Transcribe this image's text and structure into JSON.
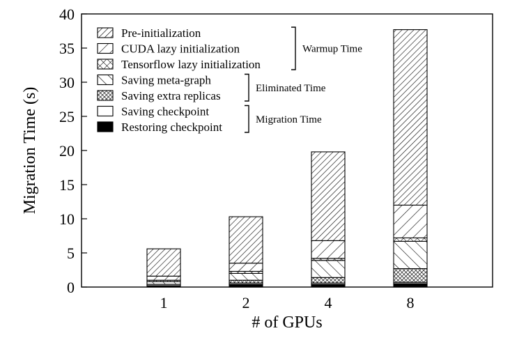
{
  "chart_data": {
    "type": "bar",
    "stacked": true,
    "title": "",
    "xlabel": "# of GPUs",
    "ylabel": "Migration Time (s)",
    "categories": [
      "1",
      "2",
      "4",
      "8"
    ],
    "ylim": [
      0,
      40
    ],
    "yticks": [
      0,
      5,
      10,
      15,
      20,
      25,
      30,
      35,
      40
    ],
    "grid": false,
    "legend_position": "top-left",
    "series": [
      {
        "name": "Restoring checkpoint",
        "values": [
          0.2,
          0.4,
          0.4,
          0.5
        ],
        "pattern": "solid"
      },
      {
        "name": "Saving checkpoint",
        "values": [
          0.2,
          0.2,
          0.2,
          0.2
        ],
        "pattern": "empty"
      },
      {
        "name": "Saving extra replicas",
        "values": [
          0.0,
          0.4,
          0.8,
          2.0
        ],
        "pattern": "crosshatch-dense"
      },
      {
        "name": "Saving meta-graph",
        "values": [
          0.4,
          1.0,
          2.5,
          4.0
        ],
        "pattern": "backslash"
      },
      {
        "name": "Tensorflow lazy initialization",
        "values": [
          0.2,
          0.3,
          0.3,
          0.5
        ],
        "pattern": "crosshatch"
      },
      {
        "name": "CUDA lazy initialization",
        "values": [
          0.6,
          1.2,
          2.6,
          4.8
        ],
        "pattern": "slash"
      },
      {
        "name": "Pre-initialization",
        "values": [
          4.0,
          6.8,
          13.0,
          25.7
        ],
        "pattern": "slash-dense"
      }
    ],
    "legend": [
      {
        "label": "Pre-initialization",
        "pattern": "slash-dense"
      },
      {
        "label": "CUDA lazy initialization",
        "pattern": "slash"
      },
      {
        "label": "Tensorflow lazy initialization",
        "pattern": "crosshatch"
      },
      {
        "label": "Saving meta-graph",
        "pattern": "backslash"
      },
      {
        "label": "Saving extra replicas",
        "pattern": "crosshatch-dense"
      },
      {
        "label": "Saving checkpoint",
        "pattern": "empty"
      },
      {
        "label": "Restoring checkpoint",
        "pattern": "solid"
      }
    ],
    "groups": [
      {
        "label": "Warmup Time",
        "members": [
          "Pre-initialization",
          "CUDA lazy initialization",
          "Tensorflow lazy initialization"
        ]
      },
      {
        "label": "Eliminated Time",
        "members": [
          "Saving meta-graph",
          "Saving extra replicas"
        ]
      },
      {
        "label": "Migration Time",
        "members": [
          "Saving checkpoint",
          "Restoring checkpoint"
        ]
      }
    ]
  }
}
